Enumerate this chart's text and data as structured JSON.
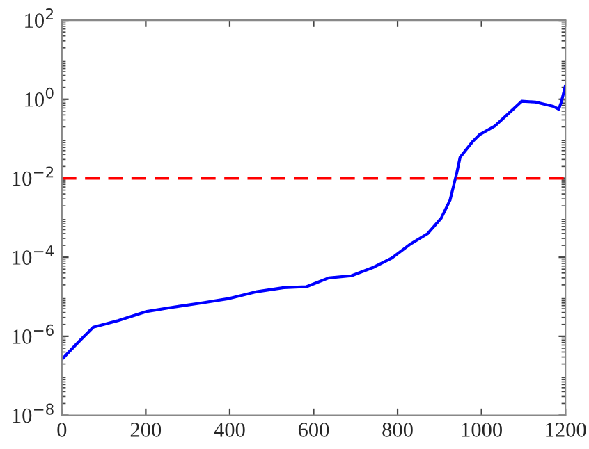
{
  "chart_data": {
    "type": "line",
    "log": "y",
    "grid": false,
    "xlim": [
      0,
      1200
    ],
    "xticks": [
      0,
      200,
      400,
      600,
      800,
      1000,
      1200
    ],
    "ylim": [
      1e-08,
      100
    ],
    "yticks": [
      {
        "value": 1e-08,
        "label": "10$^{−8}$"
      },
      {
        "value": 1e-06,
        "label": "10$^{−6}$"
      },
      {
        "value": 0.0001,
        "label": "10$^{−4}$"
      },
      {
        "value": 0.01,
        "label": "10$^{−2}$"
      },
      {
        "value": 1,
        "label": "10$^{0}$"
      },
      {
        "value": 100,
        "label": "10$^{2}$"
      }
    ],
    "series": [
      {
        "color": "#0000ff",
        "line_style": "solid",
        "x": [
          0,
          27,
          43,
          75,
          134,
          200,
          262,
          337,
          400,
          465,
          529,
          583,
          636,
          690,
          743,
          786,
          829,
          872,
          904,
          925,
          941,
          949,
          979,
          995,
          1032,
          1096,
          1128,
          1171,
          1184,
          1190,
          1200
        ],
        "values": [
          2.6e-07,
          5.2e-07,
          7.8e-07,
          1.7e-06,
          2.5e-06,
          4.2e-06,
          5.4e-06,
          7.1e-06,
          9.1e-06,
          1.35e-05,
          1.7e-05,
          1.8e-05,
          3e-05,
          3.4e-05,
          5.6e-05,
          9.5e-05,
          0.00021,
          0.0004,
          0.00098,
          0.0028,
          0.0135,
          0.034,
          0.085,
          0.126,
          0.21,
          0.89,
          0.85,
          0.66,
          0.56,
          0.83,
          2.2
        ]
      }
    ],
    "ref_lines": [
      {
        "axis": "y",
        "value": 0.01,
        "color": "#ff0000",
        "line_style": "dashed"
      }
    ]
  }
}
